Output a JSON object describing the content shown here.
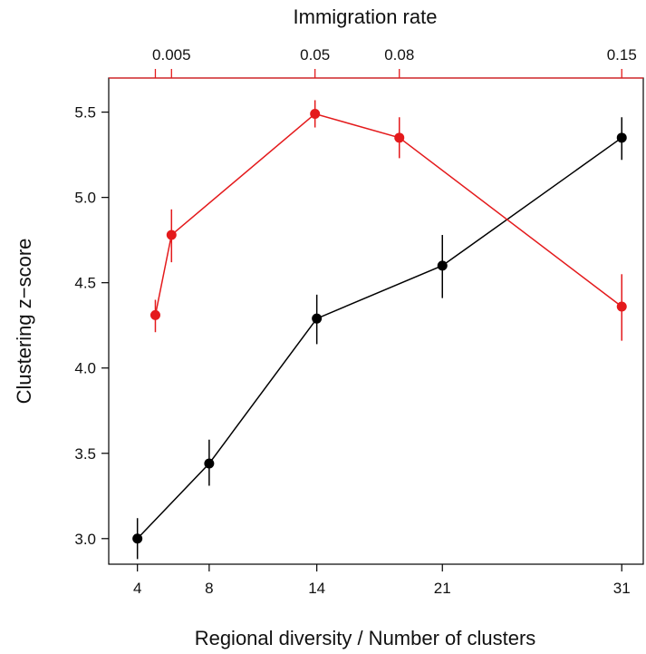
{
  "chart_data": {
    "type": "line",
    "ylabel": "Clustering z−score",
    "xlabel": "Regional diversity / Number of clusters",
    "x_top_label": "Immigration rate",
    "ylim": [
      2.85,
      5.7
    ],
    "xlim": [
      2.4,
      32.2
    ],
    "x_ticks": [
      4,
      8,
      14,
      21,
      31
    ],
    "x_tick_labels": [
      "4",
      "8",
      "14",
      "21",
      "31"
    ],
    "y_ticks": [
      3.0,
      3.5,
      4.0,
      4.5,
      5.0,
      5.5
    ],
    "y_tick_labels": [
      "3.0",
      "3.5",
      "4.0",
      "4.5",
      "5.0",
      "5.5"
    ],
    "top_ticks_x": [
      5.0,
      5.9,
      13.9,
      18.6,
      31
    ],
    "top_tick_labels": [
      "",
      "0.005",
      "0.05",
      "0.08",
      "0.15"
    ],
    "grid": false,
    "series": [
      {
        "color": "#000000",
        "points": [
          {
            "x": 4,
            "y": 3.0,
            "lo": 2.88,
            "hi": 3.12
          },
          {
            "x": 8,
            "y": 3.44,
            "lo": 3.31,
            "hi": 3.58
          },
          {
            "x": 14,
            "y": 4.29,
            "lo": 4.14,
            "hi": 4.43
          },
          {
            "x": 21,
            "y": 4.6,
            "lo": 4.41,
            "hi": 4.78
          },
          {
            "x": 31,
            "y": 5.35,
            "lo": 5.22,
            "hi": 5.47
          }
        ]
      },
      {
        "color": "#e41a1c",
        "points": [
          {
            "x": 5.0,
            "y": 4.31,
            "lo": 4.21,
            "hi": 4.4
          },
          {
            "x": 5.9,
            "y": 4.78,
            "lo": 4.62,
            "hi": 4.93
          },
          {
            "x": 13.9,
            "y": 5.49,
            "lo": 5.41,
            "hi": 5.57
          },
          {
            "x": 18.6,
            "y": 5.35,
            "lo": 5.23,
            "hi": 5.47
          },
          {
            "x": 31,
            "y": 4.36,
            "lo": 4.16,
            "hi": 4.55
          }
        ]
      }
    ]
  }
}
